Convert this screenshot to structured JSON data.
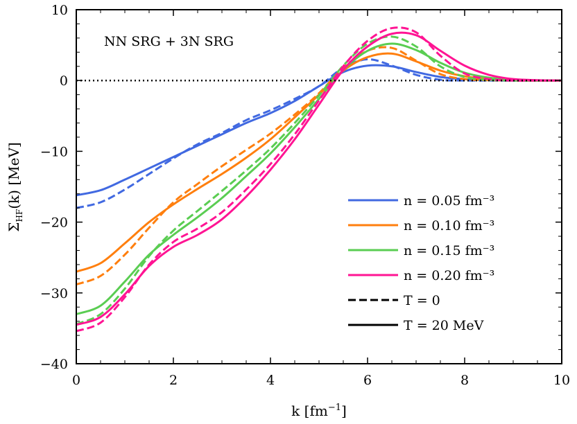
{
  "chart_data": {
    "type": "line",
    "title": "",
    "annotation": "NN SRG + 3N SRG",
    "xlabel": "k [fm⁻¹]",
    "ylabel": "Σ_HF(k) [MeV]",
    "xlim": [
      0,
      10
    ],
    "ylim": [
      -40,
      10
    ],
    "xticks": [
      0,
      2,
      4,
      6,
      8,
      10
    ],
    "yticks": [
      -40,
      -30,
      -20,
      -10,
      0,
      10
    ],
    "xtick_labels": [
      "0",
      "2",
      "4",
      "6",
      "8",
      "10"
    ],
    "ytick_labels": [
      "−40",
      "−30",
      "−20",
      "−10",
      "0",
      "10"
    ],
    "grid": false,
    "reference_line": {
      "y": 0,
      "style": "dotted",
      "color": "#000000"
    },
    "legend": {
      "placement": "lower-right",
      "entries": [
        {
          "label": "n = 0.05 fm⁻³",
          "color": "#4169e1",
          "style": "solid"
        },
        {
          "label": "n = 0.10 fm⁻³",
          "color": "#ff7f0e",
          "style": "solid"
        },
        {
          "label": "n = 0.15 fm⁻³",
          "color": "#5acd52",
          "style": "solid"
        },
        {
          "label": "n = 0.20 fm⁻³",
          "color": "#ff1493",
          "style": "solid"
        },
        {
          "label": "T = 0",
          "color": "#000000",
          "style": "dashed"
        },
        {
          "label": "T = 20 MeV",
          "color": "#000000",
          "style": "solid"
        }
      ]
    },
    "x": [
      0,
      0.5,
      1,
      1.5,
      2,
      2.5,
      3,
      3.5,
      4,
      4.5,
      5,
      5.5,
      6,
      6.5,
      7,
      7.5,
      8,
      8.5,
      9,
      9.5,
      10
    ],
    "series": [
      {
        "density": 0.05,
        "temperature": "T = 20 MeV",
        "color": "#4169e1",
        "style": "solid",
        "values": [
          -16.2,
          -15.5,
          -14.0,
          -12.4,
          -10.8,
          -9.2,
          -7.6,
          -6.0,
          -4.6,
          -2.9,
          -0.8,
          1.2,
          2.1,
          2.0,
          1.2,
          0.5,
          0.2,
          0.05,
          0,
          0,
          0
        ]
      },
      {
        "density": 0.05,
        "temperature": "T = 0",
        "color": "#4169e1",
        "style": "dashed",
        "values": [
          -18.0,
          -17.2,
          -15.4,
          -13.2,
          -11.0,
          -9.0,
          -7.4,
          -5.6,
          -4.2,
          -2.6,
          -0.8,
          1.8,
          3.0,
          2.1,
          0.8,
          0.1,
          0,
          0,
          0,
          0,
          0
        ]
      },
      {
        "density": 0.1,
        "temperature": "T = 20 MeV",
        "color": "#ff7f0e",
        "style": "solid",
        "values": [
          -27.0,
          -25.8,
          -23.0,
          -20.0,
          -17.5,
          -15.3,
          -13.2,
          -10.9,
          -8.3,
          -5.2,
          -2.0,
          1.4,
          3.3,
          3.8,
          2.7,
          1.4,
          0.6,
          0.2,
          0.05,
          0,
          0
        ]
      },
      {
        "density": 0.1,
        "temperature": "T = 0",
        "color": "#ff7f0e",
        "style": "dashed",
        "values": [
          -28.8,
          -27.6,
          -24.6,
          -20.8,
          -17.2,
          -14.6,
          -12.1,
          -9.8,
          -7.5,
          -4.8,
          -1.8,
          1.8,
          4.2,
          4.6,
          2.8,
          0.9,
          0.2,
          0.05,
          0,
          0,
          0
        ]
      },
      {
        "density": 0.15,
        "temperature": "T = 20 MeV",
        "color": "#5acd52",
        "style": "solid",
        "values": [
          -33.0,
          -31.8,
          -28.4,
          -24.6,
          -21.8,
          -19.3,
          -16.6,
          -13.5,
          -10.3,
          -6.6,
          -2.6,
          1.5,
          4.2,
          5.2,
          4.3,
          2.5,
          1.1,
          0.4,
          0.1,
          0,
          0
        ]
      },
      {
        "density": 0.15,
        "temperature": "T = 0",
        "color": "#5acd52",
        "style": "dashed",
        "values": [
          -34.4,
          -33.0,
          -29.4,
          -24.8,
          -21.2,
          -18.4,
          -15.6,
          -12.7,
          -9.6,
          -6.0,
          -2.1,
          2.1,
          5.2,
          6.2,
          4.8,
          2.0,
          0.5,
          0.1,
          0,
          0,
          0
        ]
      },
      {
        "density": 0.2,
        "temperature": "T = 20 MeV",
        "color": "#ff1493",
        "style": "solid",
        "values": [
          -34.5,
          -33.4,
          -30.2,
          -26.2,
          -23.5,
          -21.8,
          -19.6,
          -16.4,
          -12.6,
          -8.3,
          -3.4,
          1.5,
          4.8,
          6.6,
          6.4,
          4.2,
          2.1,
          0.8,
          0.2,
          0.05,
          0
        ]
      },
      {
        "density": 0.2,
        "temperature": "T = 0",
        "color": "#ff1493",
        "style": "dashed",
        "values": [
          -35.4,
          -34.2,
          -30.6,
          -26.0,
          -22.8,
          -20.9,
          -18.6,
          -15.4,
          -11.8,
          -7.6,
          -2.8,
          2.0,
          5.6,
          7.4,
          6.8,
          3.5,
          1.0,
          0.2,
          0,
          0,
          0
        ]
      }
    ]
  }
}
